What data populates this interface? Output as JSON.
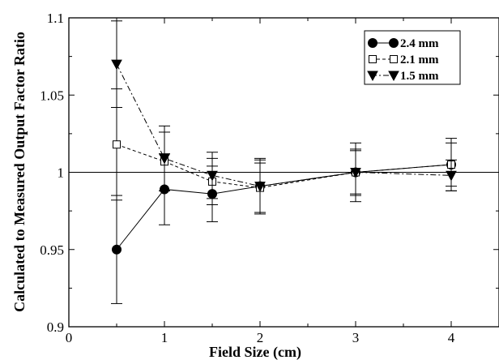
{
  "chart_data": {
    "type": "line",
    "title": "",
    "xlabel": "Field Size (cm)",
    "ylabel": "Calculated to Measured Output Factor Ratio",
    "xlim": [
      0,
      4.5
    ],
    "ylim": [
      0.9,
      1.1
    ],
    "xticks": [
      0,
      1,
      2,
      3,
      4
    ],
    "yticks": [
      0.9,
      0.95,
      1,
      1.05,
      1.1
    ],
    "x_tick_labels": [
      "0",
      "1",
      "2",
      "3",
      "4"
    ],
    "y_tick_labels": [
      "0.9",
      "0.95",
      "1",
      "1.05",
      "1.1"
    ],
    "reference_line": 1.0,
    "grid": false,
    "legend_position": "top-right",
    "series": [
      {
        "name": "2.4 mm",
        "marker": "filled-circle",
        "line_style": "solid",
        "x": [
          0.5,
          1,
          1.5,
          2,
          3,
          4
        ],
        "y": [
          0.95,
          0.989,
          0.986,
          0.991,
          1.0,
          1.005
        ],
        "err": [
          0.035,
          0.023,
          0.018,
          0.018,
          0.019,
          0.017
        ]
      },
      {
        "name": "2.1 mm",
        "marker": "open-square",
        "line_style": "dashed",
        "x": [
          0.5,
          1,
          1.5,
          2,
          3,
          4
        ],
        "y": [
          1.018,
          1.007,
          0.994,
          0.99,
          1.0,
          1.005
        ],
        "err": [
          0.036,
          0.019,
          0.015,
          0.016,
          0.015,
          0.014
        ]
      },
      {
        "name": "1.5 mm",
        "marker": "filled-triangle-down",
        "line_style": "dash-dot",
        "x": [
          0.5,
          1,
          1.5,
          2,
          3,
          4
        ],
        "y": [
          1.07,
          1.009,
          0.998,
          0.991,
          1.0,
          0.998
        ],
        "err": [
          0.028,
          0.021,
          0.015,
          0.017,
          0.014,
          0.01
        ]
      }
    ]
  }
}
